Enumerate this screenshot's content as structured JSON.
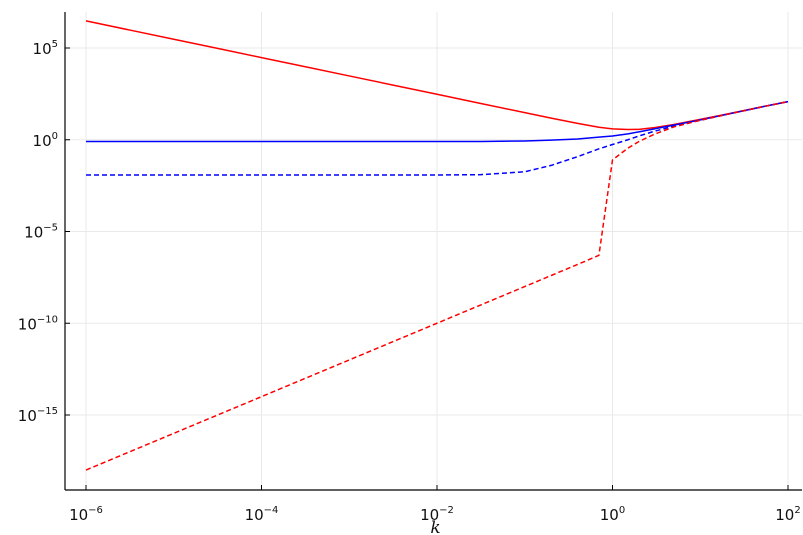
{
  "chart_data": {
    "type": "line",
    "title": "",
    "xlabel": "k",
    "ylabel": "",
    "xscale": "log",
    "yscale": "log",
    "xlim": [
      1e-06,
      100
    ],
    "ylim": [
      1e-19,
      10000000.0
    ],
    "grid": true,
    "legend": "none",
    "x_ticks": [
      {
        "value": 1e-06,
        "base": "10",
        "exp": "−6"
      },
      {
        "value": 0.0001,
        "base": "10",
        "exp": "−4"
      },
      {
        "value": 0.01,
        "base": "10",
        "exp": "−2"
      },
      {
        "value": 1,
        "base": "10",
        "exp": "0"
      },
      {
        "value": 100,
        "base": "10",
        "exp": "2"
      }
    ],
    "y_ticks": [
      {
        "value": 100000.0,
        "base": "10",
        "exp": "5"
      },
      {
        "value": 1,
        "base": "10",
        "exp": "0"
      },
      {
        "value": 1e-05,
        "base": "10",
        "exp": "−5"
      },
      {
        "value": 1e-10,
        "base": "10",
        "exp": "−10"
      },
      {
        "value": 1e-15,
        "base": "10",
        "exp": "−15"
      }
    ],
    "x": [
      1e-06,
      3.16e-06,
      1e-05,
      3.16e-05,
      0.0001,
      0.000316,
      0.001,
      0.00316,
      0.01,
      0.0316,
      0.1,
      0.2,
      0.4,
      0.7,
      1,
      1.5,
      2,
      3,
      5,
      10,
      20,
      50,
      100
    ],
    "series": [
      {
        "color": "#ff0000",
        "dash": "solid",
        "values": [
          3000000.0,
          950000.0,
          300000.0,
          95000.0,
          30000.0,
          9500.0,
          3000.0,
          950,
          300,
          95,
          30,
          15,
          7.8,
          4.8,
          3.9,
          3.6,
          3.7,
          4.6,
          6.8,
          13,
          25,
          62,
          120
        ]
      },
      {
        "color": "#0000ff",
        "dash": "solid",
        "values": [
          0.8,
          0.8,
          0.8,
          0.8,
          0.8,
          0.8,
          0.8,
          0.8,
          0.8,
          0.8,
          0.86,
          0.95,
          1.1,
          1.4,
          1.6,
          2.1,
          2.7,
          3.9,
          6.3,
          12,
          24,
          61,
          120
        ]
      },
      {
        "color": "#0000ff",
        "dash": "dashed",
        "values": [
          0.012,
          0.012,
          0.012,
          0.012,
          0.012,
          0.012,
          0.012,
          0.012,
          0.012,
          0.0125,
          0.018,
          0.04,
          0.12,
          0.32,
          0.55,
          1.0,
          1.6,
          2.9,
          5.5,
          11.5,
          24,
          61,
          120
        ]
      },
      {
        "color": "#ff0000",
        "dash": "dashed",
        "values": [
          1e-18,
          1e-17,
          1e-16,
          1e-15,
          1e-14,
          1e-13,
          1e-12,
          1e-11,
          1e-10,
          1e-09,
          1e-08,
          4e-08,
          1.6e-07,
          5e-07,
          0.08,
          0.35,
          0.8,
          2.0,
          5.0,
          11.5,
          24,
          61,
          120
        ]
      }
    ]
  }
}
